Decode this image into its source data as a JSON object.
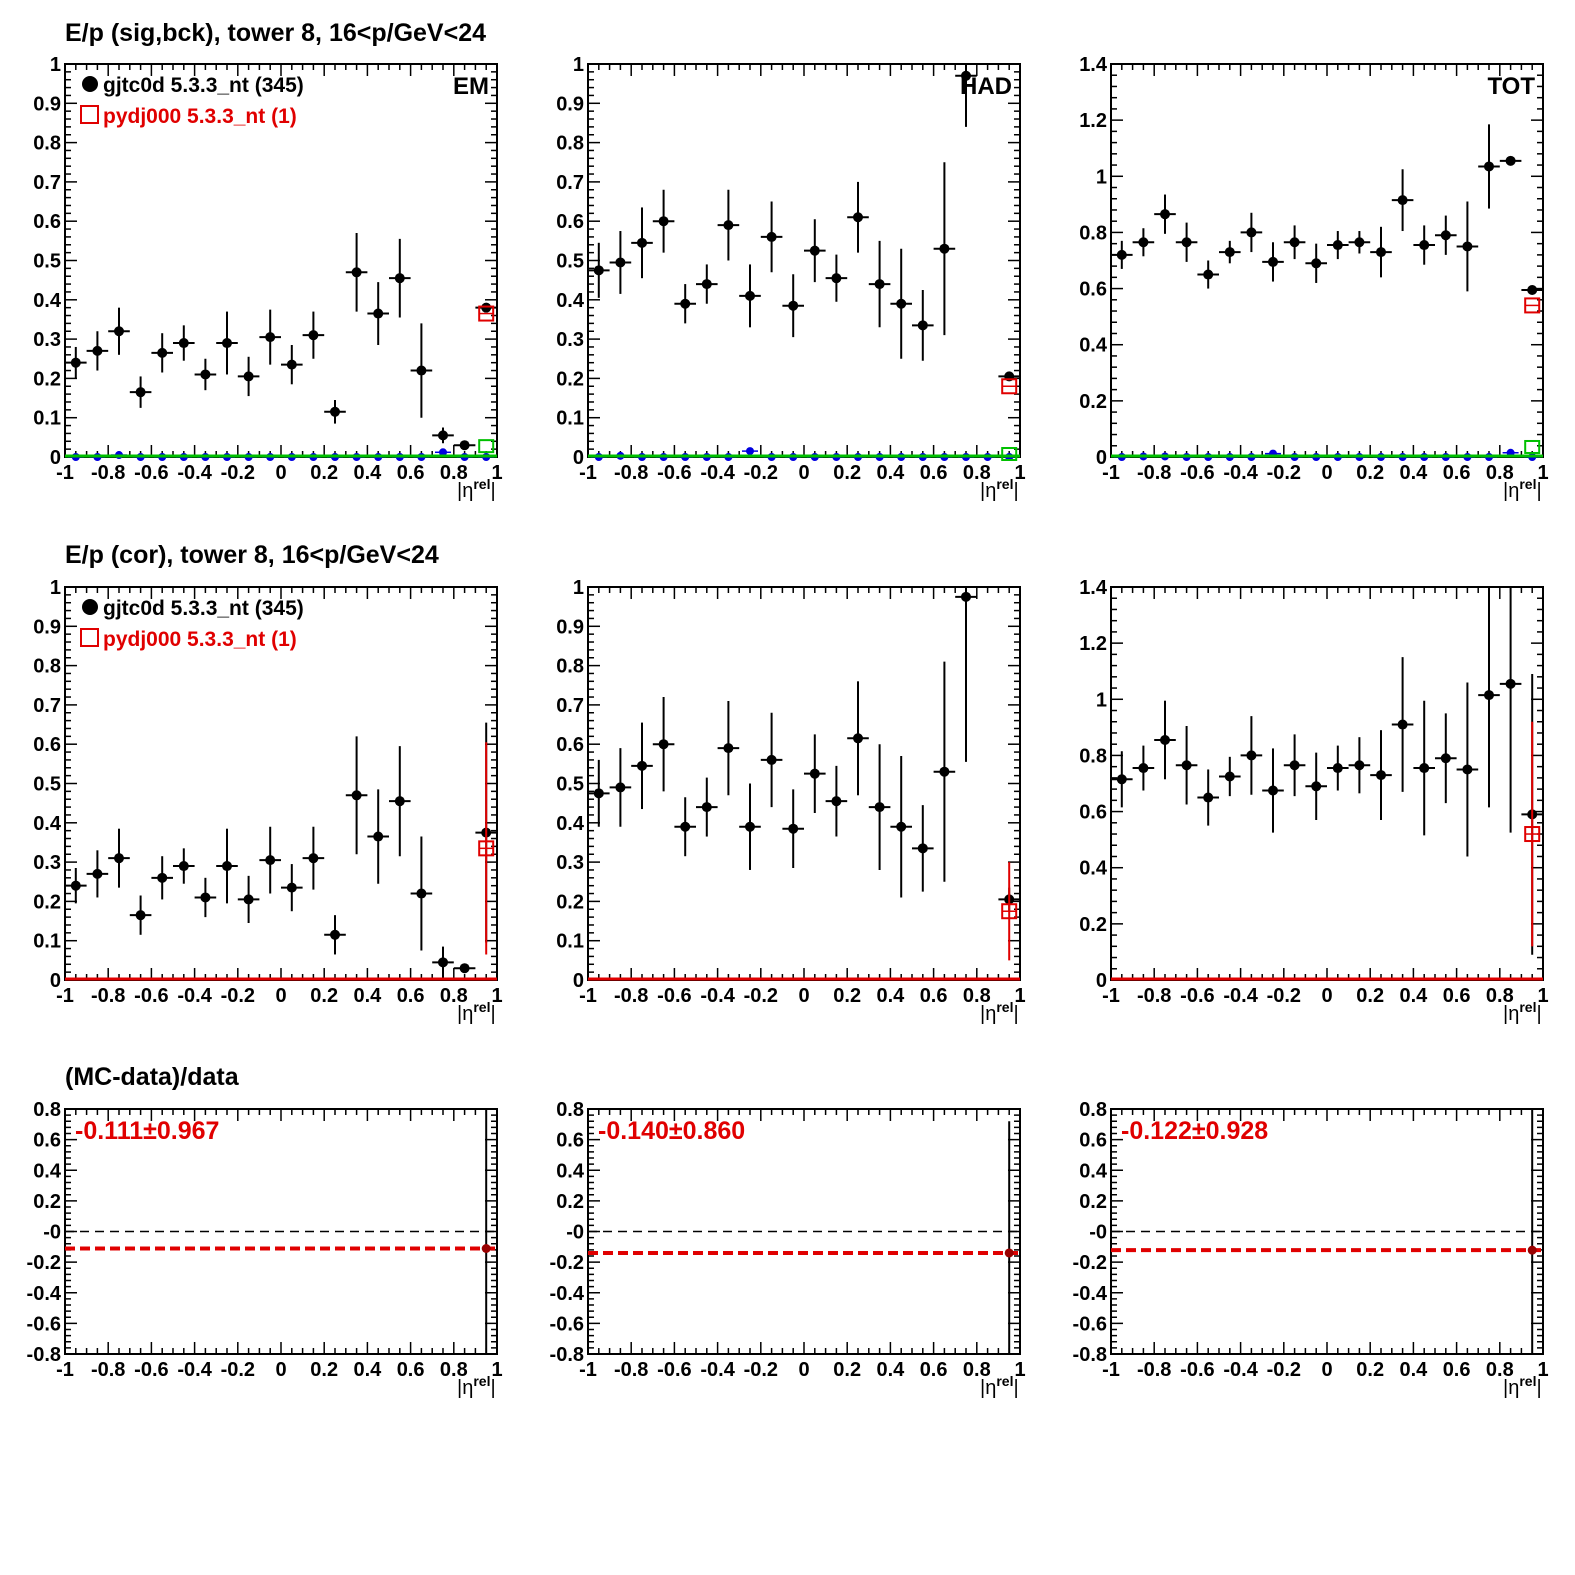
{
  "row_titles": [
    "E/p (sig,bck), tower 8, 16<p/GeV<24",
    "E/p (cor), tower 8, 16<p/GeV<24",
    "(MC-data)/data"
  ],
  "legend": {
    "data": "gjtc0d 5.3.3_nt (345)",
    "mc": "pydj000 5.3.3_nt (1)"
  },
  "x_axis_label": "|η^rel|",
  "colors": {
    "data": "#000000",
    "mc": "#e00000",
    "bck": "#0000e0",
    "bck_mc": "#00c000",
    "axis": "#000000"
  },
  "chart_data": [
    {
      "type": "scatter",
      "row": 0,
      "col": 0,
      "tag": "EM",
      "legend": true,
      "xlim": [
        -1,
        1
      ],
      "ylim": [
        0,
        1
      ],
      "x_ticks": [
        -1,
        -0.8,
        -0.6,
        -0.4,
        -0.2,
        0,
        0.2,
        0.4,
        0.6,
        0.8,
        1
      ],
      "y_ticks": [
        0,
        0.1,
        0.2,
        0.3,
        0.4,
        0.5,
        0.6,
        0.7,
        0.8,
        0.9,
        1
      ],
      "series": [
        {
          "name": "gjtc0d 5.3.3_nt (345)",
          "style": "data",
          "x": [
            -0.95,
            -0.85,
            -0.75,
            -0.65,
            -0.55,
            -0.45,
            -0.35,
            -0.25,
            -0.15,
            -0.05,
            0.05,
            0.15,
            0.25,
            0.35,
            0.45,
            0.55,
            0.65,
            0.75,
            0.85,
            0.95
          ],
          "y": [
            0.24,
            0.27,
            0.32,
            0.165,
            0.265,
            0.29,
            0.21,
            0.29,
            0.205,
            0.305,
            0.235,
            0.31,
            0.115,
            0.47,
            0.365,
            0.455,
            0.22,
            0.055,
            0.03,
            0.38
          ],
          "yerr": [
            0.04,
            0.05,
            0.06,
            0.04,
            0.05,
            0.045,
            0.04,
            0.08,
            0.05,
            0.07,
            0.05,
            0.06,
            0.03,
            0.1,
            0.08,
            0.1,
            0.12,
            0.02,
            0.005,
            0.01
          ]
        },
        {
          "name": "pydj000 5.3.3_nt (1)",
          "style": "mc",
          "x": [
            0.95
          ],
          "y": [
            0.365
          ],
          "yerr": [
            0.0
          ]
        },
        {
          "name": "",
          "style": "bck",
          "x": [
            -0.95,
            -0.85,
            -0.75,
            -0.65,
            -0.55,
            -0.45,
            -0.35,
            -0.25,
            -0.15,
            -0.05,
            0.05,
            0.15,
            0.25,
            0.35,
            0.45,
            0.55,
            0.65,
            0.75,
            0.85,
            0.95
          ],
          "y": [
            0,
            0,
            0.005,
            0,
            0,
            0,
            0,
            0,
            0,
            0,
            0,
            0,
            0,
            0,
            0,
            0,
            0,
            0.012,
            0,
            0
          ],
          "yerr": []
        },
        {
          "name": "",
          "style": "bck_mc",
          "x": [
            0.95
          ],
          "y": [
            0.02
          ],
          "yerr": []
        }
      ]
    },
    {
      "type": "scatter",
      "row": 0,
      "col": 1,
      "tag": "HAD",
      "legend": false,
      "xlim": [
        -1,
        1
      ],
      "ylim": [
        0,
        1
      ],
      "x_ticks": [
        -1,
        -0.8,
        -0.6,
        -0.4,
        -0.2,
        0,
        0.2,
        0.4,
        0.6,
        0.8,
        1
      ],
      "y_ticks": [
        0,
        0.1,
        0.2,
        0.3,
        0.4,
        0.5,
        0.6,
        0.7,
        0.8,
        0.9,
        1
      ],
      "series": [
        {
          "name": "gjtc0d 5.3.3_nt (345)",
          "style": "data",
          "x": [
            -0.95,
            -0.85,
            -0.75,
            -0.65,
            -0.55,
            -0.45,
            -0.35,
            -0.25,
            -0.15,
            -0.05,
            0.05,
            0.15,
            0.25,
            0.35,
            0.45,
            0.55,
            0.65,
            0.75,
            0.95
          ],
          "y": [
            0.475,
            0.495,
            0.545,
            0.6,
            0.39,
            0.44,
            0.59,
            0.41,
            0.56,
            0.385,
            0.525,
            0.455,
            0.61,
            0.44,
            0.39,
            0.335,
            0.53,
            0.97,
            0.205
          ],
          "yerr": [
            0.07,
            0.08,
            0.09,
            0.08,
            0.05,
            0.05,
            0.09,
            0.08,
            0.09,
            0.08,
            0.08,
            0.06,
            0.09,
            0.11,
            0.14,
            0.09,
            0.22,
            0.13,
            0.01
          ]
        },
        {
          "name": "pydj000 5.3.3_nt (1)",
          "style": "mc",
          "x": [
            0.95
          ],
          "y": [
            0.18
          ],
          "yerr": [
            0.0
          ]
        },
        {
          "name": "",
          "style": "bck",
          "x": [
            -0.95,
            -0.85,
            -0.75,
            -0.65,
            -0.55,
            -0.45,
            -0.35,
            -0.25,
            -0.15,
            -0.05,
            0.05,
            0.15,
            0.25,
            0.35,
            0.45,
            0.55,
            0.65,
            0.75,
            0.85,
            0.95
          ],
          "y": [
            0,
            0.003,
            0,
            0,
            0,
            0,
            0,
            0.015,
            0,
            0,
            0,
            0,
            0,
            0,
            0,
            0,
            0,
            0,
            0,
            0
          ],
          "yerr": []
        },
        {
          "name": "",
          "style": "bck_mc",
          "x": [
            0.95
          ],
          "y": [
            0.0
          ],
          "yerr": []
        }
      ]
    },
    {
      "type": "scatter",
      "row": 0,
      "col": 2,
      "tag": "TOT",
      "legend": false,
      "xlim": [
        -1,
        1
      ],
      "ylim": [
        0,
        1.4
      ],
      "x_ticks": [
        -1,
        -0.8,
        -0.6,
        -0.4,
        -0.2,
        0,
        0.2,
        0.4,
        0.6,
        0.8,
        1
      ],
      "y_ticks": [
        0,
        0.2,
        0.4,
        0.6,
        0.8,
        1,
        1.2,
        1.4
      ],
      "series": [
        {
          "name": "gjtc0d 5.3.3_nt (345)",
          "style": "data",
          "x": [
            -0.95,
            -0.85,
            -0.75,
            -0.65,
            -0.55,
            -0.45,
            -0.35,
            -0.25,
            -0.15,
            -0.05,
            0.05,
            0.15,
            0.25,
            0.35,
            0.45,
            0.55,
            0.65,
            0.75,
            0.85,
            0.95
          ],
          "y": [
            0.72,
            0.765,
            0.865,
            0.765,
            0.65,
            0.73,
            0.8,
            0.695,
            0.765,
            0.69,
            0.755,
            0.765,
            0.73,
            0.915,
            0.755,
            0.79,
            0.75,
            1.035,
            1.055,
            0.595
          ],
          "yerr": [
            0.05,
            0.05,
            0.07,
            0.07,
            0.05,
            0.04,
            0.07,
            0.07,
            0.06,
            0.07,
            0.05,
            0.04,
            0.09,
            0.11,
            0.07,
            0.07,
            0.16,
            0.15,
            0.005,
            0.005
          ]
        },
        {
          "name": "pydj000 5.3.3_nt (1)",
          "style": "mc",
          "x": [
            0.95
          ],
          "y": [
            0.54
          ],
          "yerr": [
            0.0
          ]
        },
        {
          "name": "",
          "style": "bck",
          "x": [
            -0.95,
            -0.85,
            -0.75,
            -0.65,
            -0.55,
            -0.45,
            -0.35,
            -0.25,
            -0.15,
            -0.05,
            0.05,
            0.15,
            0.25,
            0.35,
            0.45,
            0.55,
            0.65,
            0.75,
            0.85,
            0.95
          ],
          "y": [
            0,
            0.002,
            0.002,
            0,
            0,
            0,
            0,
            0.012,
            0,
            0,
            0,
            0,
            0,
            0,
            0,
            0,
            0,
            0,
            0.015,
            0
          ],
          "yerr": []
        },
        {
          "name": "",
          "style": "bck_mc",
          "x": [
            0.95
          ],
          "y": [
            0.025
          ],
          "yerr": []
        }
      ]
    },
    {
      "type": "scatter",
      "row": 1,
      "col": 0,
      "tag": "",
      "legend": true,
      "xlim": [
        -1,
        1
      ],
      "ylim": [
        0,
        1
      ],
      "x_ticks": [
        -1,
        -0.8,
        -0.6,
        -0.4,
        -0.2,
        0,
        0.2,
        0.4,
        0.6,
        0.8,
        1
      ],
      "y_ticks": [
        0,
        0.1,
        0.2,
        0.3,
        0.4,
        0.5,
        0.6,
        0.7,
        0.8,
        0.9,
        1
      ],
      "series": [
        {
          "name": "gjtc0d 5.3.3_nt (345)",
          "style": "data",
          "x": [
            -0.95,
            -0.85,
            -0.75,
            -0.65,
            -0.55,
            -0.45,
            -0.35,
            -0.25,
            -0.15,
            -0.05,
            0.05,
            0.15,
            0.25,
            0.35,
            0.45,
            0.55,
            0.65,
            0.75,
            0.85,
            0.95
          ],
          "y": [
            0.24,
            0.27,
            0.31,
            0.165,
            0.26,
            0.29,
            0.21,
            0.29,
            0.205,
            0.305,
            0.235,
            0.31,
            0.115,
            0.47,
            0.365,
            0.455,
            0.22,
            0.045,
            0.03,
            0.375
          ],
          "yerr": [
            0.045,
            0.06,
            0.075,
            0.05,
            0.055,
            0.045,
            0.05,
            0.095,
            0.06,
            0.085,
            0.06,
            0.08,
            0.05,
            0.15,
            0.12,
            0.14,
            0.145,
            0.04,
            0.01,
            0.28
          ]
        },
        {
          "name": "pydj000 5.3.3_nt (1)",
          "style": "mc",
          "x": [
            0.95
          ],
          "y": [
            0.335
          ],
          "yerr": [
            0.27
          ]
        },
        {
          "name": "",
          "style": "baseline",
          "x": [],
          "y": [],
          "yerr": []
        }
      ]
    },
    {
      "type": "scatter",
      "row": 1,
      "col": 1,
      "tag": "",
      "legend": false,
      "xlim": [
        -1,
        1
      ],
      "ylim": [
        0,
        1
      ],
      "x_ticks": [
        -1,
        -0.8,
        -0.6,
        -0.4,
        -0.2,
        0,
        0.2,
        0.4,
        0.6,
        0.8,
        1
      ],
      "y_ticks": [
        0,
        0.1,
        0.2,
        0.3,
        0.4,
        0.5,
        0.6,
        0.7,
        0.8,
        0.9,
        1
      ],
      "series": [
        {
          "name": "gjtc0d 5.3.3_nt (345)",
          "style": "data",
          "x": [
            -0.95,
            -0.85,
            -0.75,
            -0.65,
            -0.55,
            -0.45,
            -0.35,
            -0.25,
            -0.15,
            -0.05,
            0.05,
            0.15,
            0.25,
            0.35,
            0.45,
            0.55,
            0.65,
            0.75,
            0.95
          ],
          "y": [
            0.475,
            0.49,
            0.545,
            0.6,
            0.39,
            0.44,
            0.59,
            0.39,
            0.56,
            0.385,
            0.525,
            0.455,
            0.615,
            0.44,
            0.39,
            0.335,
            0.53,
            0.975,
            0.205
          ],
          "yerr": [
            0.085,
            0.1,
            0.11,
            0.12,
            0.075,
            0.075,
            0.12,
            0.11,
            0.12,
            0.1,
            0.1,
            0.09,
            0.145,
            0.16,
            0.18,
            0.11,
            0.28,
            0.42,
            0.03
          ]
        },
        {
          "name": "pydj000 5.3.3_nt (1)",
          "style": "mc",
          "x": [
            0.95
          ],
          "y": [
            0.175
          ],
          "yerr": [
            0.125
          ]
        },
        {
          "name": "",
          "style": "baseline",
          "x": [],
          "y": [],
          "yerr": []
        }
      ]
    },
    {
      "type": "scatter",
      "row": 1,
      "col": 2,
      "tag": "",
      "legend": false,
      "xlim": [
        -1,
        1
      ],
      "ylim": [
        0,
        1.4
      ],
      "x_ticks": [
        -1,
        -0.8,
        -0.6,
        -0.4,
        -0.2,
        0,
        0.2,
        0.4,
        0.6,
        0.8,
        1
      ],
      "y_ticks": [
        0,
        0.2,
        0.4,
        0.6,
        0.8,
        1,
        1.2,
        1.4
      ],
      "series": [
        {
          "name": "gjtc0d 5.3.3_nt (345)",
          "style": "data",
          "x": [
            -0.95,
            -0.85,
            -0.75,
            -0.65,
            -0.55,
            -0.45,
            -0.35,
            -0.25,
            -0.15,
            -0.05,
            0.05,
            0.15,
            0.25,
            0.35,
            0.45,
            0.55,
            0.65,
            0.75,
            0.85,
            0.95
          ],
          "y": [
            0.715,
            0.755,
            0.855,
            0.765,
            0.65,
            0.725,
            0.8,
            0.675,
            0.765,
            0.69,
            0.755,
            0.765,
            0.73,
            0.91,
            0.755,
            0.79,
            0.75,
            1.015,
            1.055,
            0.59
          ],
          "yerr": [
            0.1,
            0.08,
            0.14,
            0.14,
            0.1,
            0.07,
            0.14,
            0.15,
            0.11,
            0.12,
            0.08,
            0.1,
            0.16,
            0.24,
            0.24,
            0.16,
            0.31,
            0.4,
            0.53,
            0.5
          ]
        },
        {
          "name": "pydj000 5.3.3_nt (1)",
          "style": "mc",
          "x": [
            0.95
          ],
          "y": [
            0.52
          ],
          "yerr": [
            0.4
          ]
        },
        {
          "name": "",
          "style": "baseline",
          "x": [],
          "y": [],
          "yerr": []
        }
      ]
    },
    {
      "type": "scatter",
      "row": 2,
      "col": 0,
      "tag": "",
      "legend": false,
      "xlim": [
        -1,
        1
      ],
      "ylim": [
        -0.8,
        0.8
      ],
      "x_ticks": [
        -1,
        -0.8,
        -0.6,
        -0.4,
        -0.2,
        0,
        0.2,
        0.4,
        0.6,
        0.8,
        1
      ],
      "y_ticks": [
        -0.8,
        -0.6,
        -0.4,
        -0.2,
        0,
        0.2,
        0.4,
        0.6,
        0.8
      ],
      "annotation": "-0.111±0.967",
      "fit_value": -0.111,
      "series": [
        {
          "name": "",
          "style": "ratio",
          "x": [
            0.95
          ],
          "y": [
            -0.111
          ],
          "yerr": [
            0.967
          ]
        }
      ]
    },
    {
      "type": "scatter",
      "row": 2,
      "col": 1,
      "tag": "",
      "legend": false,
      "xlim": [
        -1,
        1
      ],
      "ylim": [
        -0.8,
        0.8
      ],
      "x_ticks": [
        -1,
        -0.8,
        -0.6,
        -0.4,
        -0.2,
        0,
        0.2,
        0.4,
        0.6,
        0.8,
        1
      ],
      "y_ticks": [
        -0.8,
        -0.6,
        -0.4,
        -0.2,
        0,
        0.2,
        0.4,
        0.6,
        0.8
      ],
      "annotation": "-0.140±0.860",
      "fit_value": -0.14,
      "series": [
        {
          "name": "",
          "style": "ratio",
          "x": [
            0.95
          ],
          "y": [
            -0.14
          ],
          "yerr": [
            0.86
          ]
        }
      ]
    },
    {
      "type": "scatter",
      "row": 2,
      "col": 2,
      "tag": "",
      "legend": false,
      "xlim": [
        -1,
        1
      ],
      "ylim": [
        -0.8,
        0.8
      ],
      "x_ticks": [
        -1,
        -0.8,
        -0.6,
        -0.4,
        -0.2,
        0,
        0.2,
        0.4,
        0.6,
        0.8,
        1
      ],
      "y_ticks": [
        -0.8,
        -0.6,
        -0.4,
        -0.2,
        0,
        0.2,
        0.4,
        0.6,
        0.8
      ],
      "annotation": "-0.122±0.928",
      "fit_value": -0.122,
      "series": [
        {
          "name": "",
          "style": "ratio",
          "x": [
            0.95
          ],
          "y": [
            -0.122
          ],
          "yerr": [
            0.928
          ]
        }
      ]
    }
  ]
}
